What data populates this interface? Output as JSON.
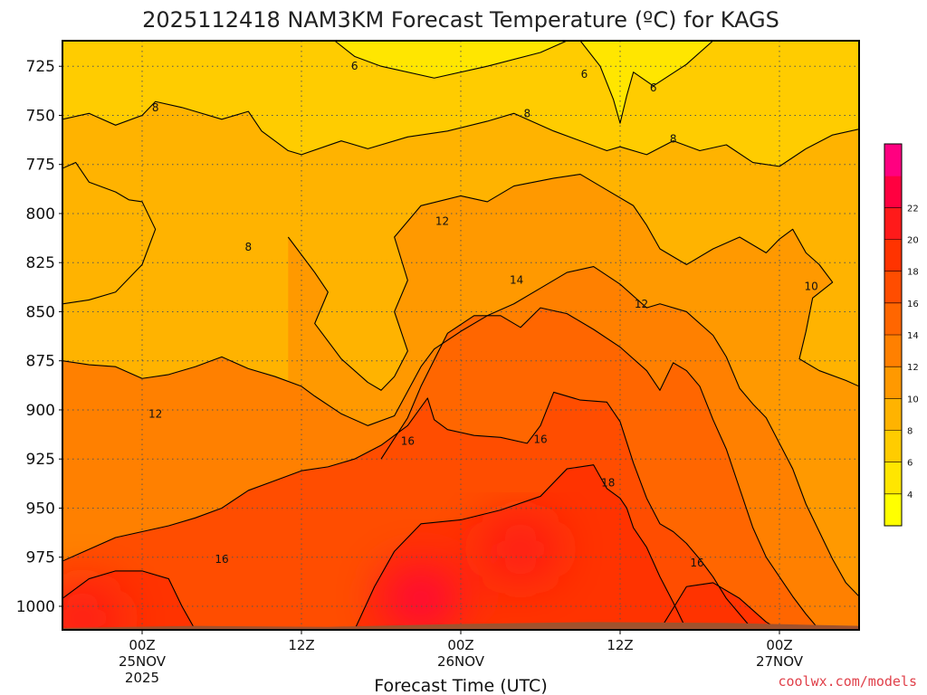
{
  "title": "2025112418 NAM3KM Forecast Temperature (ºC) for KAGS",
  "credit": "coolwx.com/models",
  "colors": {
    "ground": "#a0522d",
    "contour": "#000000",
    "gridline": "#555555",
    "scale": [
      "#ffff00",
      "#ffe600",
      "#ffcc00",
      "#ffb300",
      "#ff9900",
      "#ff8000",
      "#ff6600",
      "#ff4d00",
      "#ff3300",
      "#ff1a1a",
      "#ff0040",
      "#ff0080"
    ]
  },
  "chart_data": {
    "type": "heatmap",
    "title": "2025112418 NAM3KM Forecast Temperature (ºC) for KAGS",
    "xlabel": "Forecast Time (UTC)",
    "ylabel": "",
    "y_axis": {
      "unit": "hPa",
      "inverted": true,
      "range": [
        1012,
        712
      ],
      "ticks": [
        725,
        750,
        775,
        800,
        825,
        850,
        875,
        900,
        925,
        950,
        975,
        1000
      ]
    },
    "x_axis": {
      "unit": "forecast hour from 2025-11-24 18Z",
      "range": [
        0,
        60
      ],
      "ticks": [
        {
          "hour": 6,
          "label": "00Z",
          "sub": [
            "25NOV",
            "2025"
          ]
        },
        {
          "hour": 18,
          "label": "12Z",
          "sub": []
        },
        {
          "hour": 30,
          "label": "00Z",
          "sub": [
            "26NOV"
          ]
        },
        {
          "hour": 42,
          "label": "12Z",
          "sub": []
        },
        {
          "hour": 54,
          "label": "00Z",
          "sub": [
            "27NOV"
          ]
        }
      ]
    },
    "grid": true,
    "colorbar": {
      "placement": "right",
      "levels": [
        2,
        4,
        6,
        8,
        10,
        12,
        14,
        16,
        18,
        20,
        22,
        24
      ],
      "tick_labels": [
        "4",
        "6",
        "8",
        "10",
        "12",
        "14",
        "16",
        "18",
        "20",
        "22"
      ]
    },
    "contour_levels": [
      6,
      8,
      10,
      12,
      14,
      16,
      18
    ],
    "series": [
      {
        "name": "6",
        "points": [
          [
            20.5,
            712
          ],
          [
            22,
            720
          ],
          [
            24,
            725
          ],
          [
            28,
            731
          ],
          [
            32,
            725
          ],
          [
            36,
            718
          ],
          [
            38,
            712
          ]
        ]
      },
      {
        "name": "6",
        "points": [
          [
            39,
            712
          ],
          [
            40.5,
            725
          ],
          [
            41.5,
            742
          ],
          [
            42,
            754
          ],
          [
            42.5,
            740
          ],
          [
            43,
            728
          ],
          [
            44.5,
            735
          ],
          [
            47,
            724
          ],
          [
            49,
            712
          ]
        ]
      },
      {
        "name": "8",
        "points": [
          [
            0,
            752
          ],
          [
            2,
            749
          ],
          [
            4,
            755
          ],
          [
            6,
            750
          ],
          [
            7,
            743
          ],
          [
            9,
            746
          ],
          [
            12,
            752
          ],
          [
            14,
            748
          ],
          [
            15,
            758
          ],
          [
            17,
            768
          ],
          [
            18,
            770
          ],
          [
            21,
            763
          ],
          [
            23,
            767
          ],
          [
            26,
            761
          ],
          [
            29,
            758
          ],
          [
            32,
            753
          ],
          [
            34,
            749
          ],
          [
            37,
            758
          ],
          [
            41,
            768
          ],
          [
            42,
            766
          ],
          [
            44,
            770
          ],
          [
            46,
            763
          ],
          [
            48,
            768
          ],
          [
            50,
            765
          ],
          [
            52,
            774
          ],
          [
            54,
            776
          ],
          [
            56,
            767
          ],
          [
            58,
            760
          ],
          [
            60,
            757
          ]
        ]
      },
      {
        "name": "10",
        "points": [
          [
            0,
            777
          ],
          [
            1,
            774
          ],
          [
            2,
            784
          ],
          [
            4,
            789
          ],
          [
            5,
            793
          ],
          [
            6,
            794
          ],
          [
            7,
            808
          ],
          [
            6,
            826
          ],
          [
            4,
            840
          ],
          [
            2,
            844
          ],
          [
            0,
            846
          ]
        ]
      },
      {
        "name": "10",
        "points": [
          [
            17,
            812
          ],
          [
            19,
            830
          ],
          [
            20,
            840
          ],
          [
            19,
            856
          ],
          [
            21,
            874
          ],
          [
            23,
            886
          ],
          [
            24,
            890
          ],
          [
            25,
            883
          ],
          [
            26,
            870
          ],
          [
            25,
            850
          ],
          [
            26,
            834
          ],
          [
            25,
            812
          ],
          [
            27,
            796
          ],
          [
            30,
            791
          ],
          [
            32,
            794
          ],
          [
            34,
            786
          ],
          [
            37,
            782
          ],
          [
            39,
            780
          ],
          [
            41,
            788
          ],
          [
            43,
            796
          ],
          [
            44,
            806
          ],
          [
            45,
            818
          ],
          [
            47,
            826
          ],
          [
            49,
            818
          ],
          [
            51,
            812
          ],
          [
            53,
            820
          ],
          [
            54,
            813
          ],
          [
            55,
            808
          ],
          [
            56,
            820
          ],
          [
            57,
            826
          ],
          [
            58,
            835
          ],
          [
            56.5,
            843
          ],
          [
            56,
            860
          ],
          [
            55.5,
            874
          ],
          [
            57,
            880
          ],
          [
            59,
            885
          ],
          [
            60,
            888
          ]
        ]
      },
      {
        "name": "12",
        "points": [
          [
            0,
            875
          ],
          [
            2,
            877
          ],
          [
            4,
            878
          ],
          [
            6,
            884
          ],
          [
            8,
            882
          ],
          [
            10,
            878
          ],
          [
            12,
            873
          ],
          [
            14,
            879
          ],
          [
            16,
            883
          ],
          [
            18,
            888
          ],
          [
            19,
            893
          ],
          [
            21,
            902
          ],
          [
            23,
            908
          ],
          [
            25,
            903
          ],
          [
            27,
            878
          ],
          [
            28,
            869
          ],
          [
            30,
            860
          ],
          [
            32,
            852
          ],
          [
            34,
            846
          ],
          [
            36,
            838
          ],
          [
            38,
            830
          ],
          [
            40,
            827
          ],
          [
            42,
            836
          ],
          [
            44,
            848
          ],
          [
            45,
            846
          ],
          [
            47,
            850
          ],
          [
            49,
            862
          ],
          [
            50,
            873
          ],
          [
            51,
            889
          ],
          [
            52,
            897
          ],
          [
            53,
            904
          ],
          [
            54,
            917
          ],
          [
            55,
            930
          ],
          [
            56,
            948
          ],
          [
            57,
            962
          ],
          [
            58,
            976
          ],
          [
            59,
            988
          ],
          [
            60,
            995
          ]
        ]
      },
      {
        "name": "14",
        "points": [
          [
            24,
            925
          ],
          [
            26,
            904
          ],
          [
            27,
            888
          ],
          [
            29,
            861
          ],
          [
            31,
            852
          ],
          [
            33,
            852
          ],
          [
            34.5,
            858
          ],
          [
            36,
            848
          ],
          [
            38,
            851
          ],
          [
            40,
            859
          ],
          [
            42,
            868
          ],
          [
            44,
            880
          ],
          [
            45,
            890
          ],
          [
            46,
            876
          ],
          [
            47,
            880
          ],
          [
            48,
            888
          ],
          [
            49,
            905
          ],
          [
            50,
            920
          ],
          [
            51,
            940
          ],
          [
            52,
            960
          ],
          [
            53,
            975
          ],
          [
            54,
            985
          ],
          [
            55,
            995
          ],
          [
            56,
            1004
          ],
          [
            57,
            1012
          ]
        ]
      },
      {
        "name": "16",
        "points": [
          [
            0,
            977
          ],
          [
            2,
            971
          ],
          [
            4,
            965
          ],
          [
            6,
            962
          ],
          [
            8,
            959
          ],
          [
            10,
            955
          ],
          [
            12,
            950
          ],
          [
            14,
            941
          ],
          [
            16,
            936
          ],
          [
            18,
            931
          ],
          [
            20,
            929
          ],
          [
            22,
            925
          ],
          [
            24,
            918
          ],
          [
            26,
            908
          ],
          [
            27.5,
            894
          ],
          [
            28,
            905
          ],
          [
            29,
            910
          ],
          [
            31,
            913
          ],
          [
            33,
            914
          ],
          [
            35,
            917
          ],
          [
            36,
            908
          ],
          [
            37,
            891
          ],
          [
            39,
            895
          ],
          [
            41,
            896
          ],
          [
            42,
            906
          ],
          [
            43,
            927
          ],
          [
            44,
            945
          ],
          [
            45,
            958
          ],
          [
            46,
            962
          ],
          [
            47,
            968
          ],
          [
            48,
            976
          ],
          [
            49,
            985
          ],
          [
            50,
            996
          ],
          [
            51,
            1004
          ],
          [
            52,
            1012
          ]
        ]
      },
      {
        "name": "18",
        "points": [
          [
            0,
            996
          ],
          [
            2,
            986
          ],
          [
            4,
            982
          ],
          [
            6,
            982
          ],
          [
            8,
            986
          ],
          [
            9,
            1000
          ],
          [
            10,
            1012
          ]
        ]
      },
      {
        "name": "18",
        "points": [
          [
            22,
            1012
          ],
          [
            23.5,
            990
          ],
          [
            25,
            972
          ],
          [
            27,
            958
          ],
          [
            30,
            956
          ],
          [
            33,
            951
          ],
          [
            36,
            944
          ],
          [
            38,
            930
          ],
          [
            40,
            928
          ],
          [
            41,
            940
          ],
          [
            42,
            945
          ],
          [
            42.5,
            950
          ],
          [
            43,
            960
          ],
          [
            44,
            970
          ],
          [
            45,
            985
          ],
          [
            46,
            998
          ],
          [
            47,
            1012
          ]
        ]
      },
      {
        "name": "18",
        "points": [
          [
            45,
            1012
          ],
          [
            47,
            990
          ],
          [
            49,
            988
          ],
          [
            51,
            996
          ],
          [
            53,
            1008
          ],
          [
            54,
            1012
          ]
        ]
      }
    ],
    "labels": [
      {
        "text": "6",
        "x": 22,
        "y": 725
      },
      {
        "text": "6",
        "x": 39.3,
        "y": 729
      },
      {
        "text": "6",
        "x": 44.5,
        "y": 736
      },
      {
        "text": "8",
        "x": 7,
        "y": 746
      },
      {
        "text": "8",
        "x": 35,
        "y": 749
      },
      {
        "text": "8",
        "x": 46,
        "y": 762
      },
      {
        "text": "8",
        "x": 14,
        "y": 817
      },
      {
        "text": "10",
        "x": 56.4,
        "y": 837
      },
      {
        "text": "12",
        "x": 7,
        "y": 902
      },
      {
        "text": "12",
        "x": 28.6,
        "y": 804
      },
      {
        "text": "12",
        "x": 43.6,
        "y": 846
      },
      {
        "text": "14",
        "x": 34.2,
        "y": 834
      },
      {
        "text": "16",
        "x": 12,
        "y": 1
      },
      {
        "text": "16",
        "x": 26,
        "y": 916
      },
      {
        "text": "16",
        "x": 36,
        "y": 915
      },
      {
        "text": "16",
        "x": 47.8,
        "y": 978
      },
      {
        "text": "18",
        "x": 41.1,
        "y": 937
      }
    ],
    "warm_cores": [
      {
        "x": 1.5,
        "y": 1006,
        "value": 20
      },
      {
        "x": 27,
        "y": 996,
        "value": 22
      },
      {
        "x": 34.5,
        "y": 971,
        "value": 20
      }
    ]
  }
}
